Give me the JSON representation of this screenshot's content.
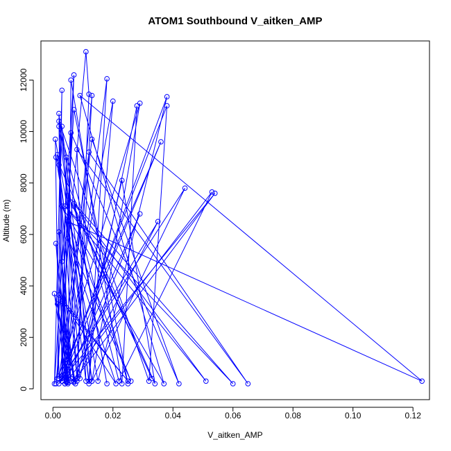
{
  "chart_data": {
    "type": "line",
    "title": "ATOM1 Southbound V_aitken_AMP",
    "xlabel": "V_aitken_AMP",
    "ylabel": "Altitude (m)",
    "xlim": [
      -0.004,
      0.1255
    ],
    "ylim": [
      -420,
      13520
    ],
    "x_ticks": [
      0.0,
      0.02,
      0.04,
      0.06,
      0.08,
      0.1,
      0.12
    ],
    "x_tick_labels": [
      "0.00",
      "0.02",
      "0.04",
      "0.06",
      "0.08",
      "0.10",
      "0.12"
    ],
    "y_ticks": [
      0,
      2000,
      4000,
      6000,
      8000,
      10000,
      12000
    ],
    "y_tick_labels": [
      "0",
      "2000",
      "4000",
      "6000",
      "8000",
      "10000",
      "12000"
    ],
    "grid": false,
    "legend": "none",
    "color": "#0000ff",
    "marker": "open-circle",
    "series": [
      {
        "x": [
          0.001,
          0.011,
          0.012,
          0.008,
          0.013,
          0.004,
          0.002,
          0.012,
          0.02,
          0.003,
          0.007,
          0.0005,
          0.003,
          0.0015,
          0.007,
          0.025,
          0.002,
          0.012,
          0.018,
          0.005,
          0.006,
          0.023,
          0.028,
          0.009,
          0.003,
          0.013,
          0.029,
          0.002,
          0.0008,
          0.015,
          0.038,
          0.003,
          0.002,
          0.032,
          0.038,
          0.003,
          0.013,
          0.042,
          0.006,
          0.003,
          0.036,
          0.002,
          0.012,
          0.065,
          0.008,
          0.011,
          0.0015,
          0.008,
          0.023,
          0.034,
          0.001,
          0.013,
          0.044,
          0.003,
          0.0045,
          0.018,
          0.007,
          0.051,
          0.004,
          0.06,
          0.005,
          0.033,
          0.007,
          0.022,
          0.053,
          0.004,
          0.029,
          0.007,
          0.054,
          0.002,
          0.035,
          0.008,
          0.005,
          0.123,
          0.009,
          0.037,
          0.003,
          0.026,
          0.005,
          0.021,
          0.002,
          0.025,
          0.003,
          0.007,
          0.002,
          0.006,
          0.001,
          0.0045,
          0.005,
          0.0075,
          0.0005,
          0.0045,
          0.003,
          0.005,
          0.0015,
          0.006,
          0.002
        ],
        "y": [
          200,
          13100,
          11450,
          300,
          11400,
          200,
          10700,
          200,
          11180,
          300,
          12200,
          200,
          11600,
          400,
          10850,
          200,
          10200,
          300,
          12050,
          250,
          12000,
          200,
          11000,
          400,
          10200,
          300,
          11100,
          500,
          9700,
          300,
          11350,
          400,
          10400,
          300,
          11000,
          500,
          9700,
          200,
          9950,
          300,
          9600,
          400,
          9200,
          200,
          9300,
          300,
          9100,
          400,
          8100,
          200,
          9000,
          300,
          7800,
          400,
          9000,
          200,
          7200,
          300,
          7100,
          200,
          7500,
          400,
          7100,
          300,
          7650,
          200,
          6800,
          300,
          7600,
          200,
          6500,
          400,
          6500,
          300,
          11400,
          200,
          7100,
          300,
          5850,
          200,
          3650,
          300,
          3400,
          250,
          6100,
          400,
          5650,
          300,
          2050,
          200,
          3700,
          250,
          4950,
          200,
          3300,
          300,
          8700
        ]
      }
    ]
  }
}
